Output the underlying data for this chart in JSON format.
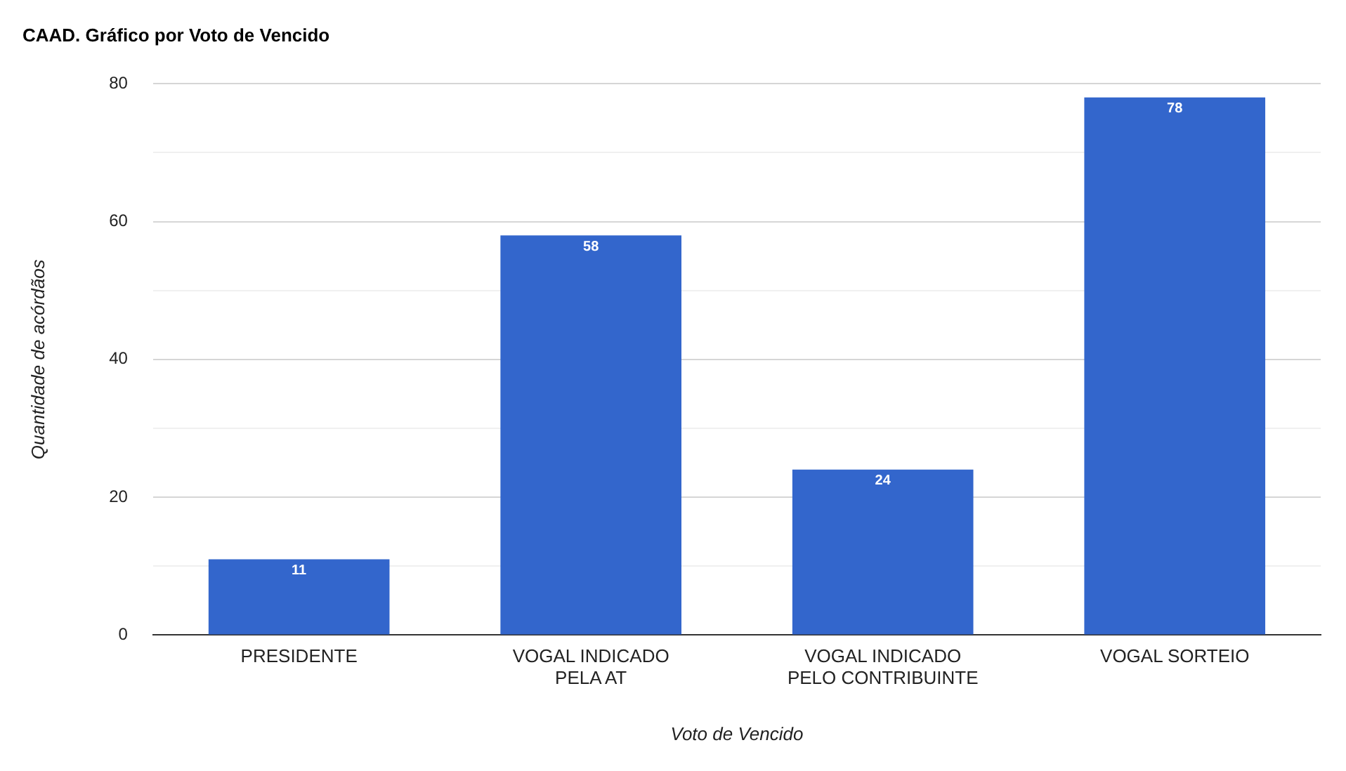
{
  "chart_data": {
    "type": "bar",
    "title": "CAAD. Gráfico por Voto de Vencido",
    "xlabel": "Voto de Vencido",
    "ylabel": "Quantidade de acórdãos",
    "categories": [
      "PRESIDENTE",
      "VOGAL INDICADO PELA AT",
      "VOGAL INDICADO PELO CONTRIBUINTE",
      "VOGAL SORTEIO"
    ],
    "values": [
      11,
      58,
      24,
      78
    ],
    "color": "#3366cc",
    "ylim": [
      0,
      80
    ],
    "yticks": [
      0,
      {
        "value": 10,
        "label": null
      },
      20,
      {
        "value": 30,
        "label": null
      },
      40,
      {
        "value": 50,
        "label": null
      },
      60,
      {
        "value": 70,
        "label": null
      },
      80
    ],
    "grid": "y",
    "data_labels": true,
    "legend": false
  }
}
